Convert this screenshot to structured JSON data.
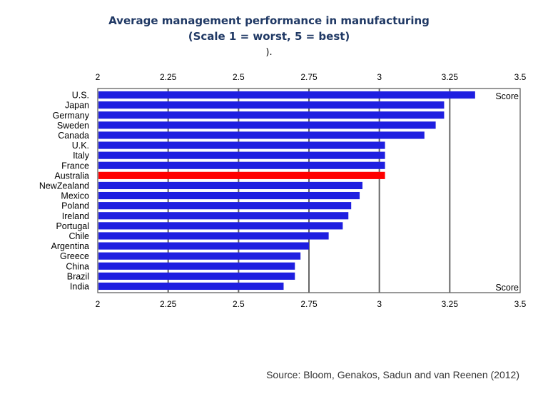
{
  "header": {
    "title": "Average management performance in manufacturing",
    "subtitle": "(Scale 1 = worst, 5 = best)",
    "note": ")."
  },
  "source": "Source: Bloom, Genakos, Sadun and van Reenen (2012)",
  "colors": {
    "bar": "#1f1fe0",
    "highlight": "#ff0000",
    "title": "#1f3864"
  },
  "chart_data": {
    "type": "bar",
    "orientation": "horizontal",
    "categories": [
      "U.S.",
      "Japan",
      "Germany",
      "Sweden",
      "Canada",
      "U.K.",
      "Italy",
      "France",
      "Australia",
      "NewZealand",
      "Mexico",
      "Poland",
      "Ireland",
      "Portugal",
      "Chile",
      "Argentina",
      "Greece",
      "China",
      "Brazil",
      "India"
    ],
    "values": [
      3.34,
      3.23,
      3.23,
      3.2,
      3.16,
      3.02,
      3.02,
      3.02,
      3.02,
      2.94,
      2.93,
      2.9,
      2.89,
      2.87,
      2.82,
      2.75,
      2.72,
      2.7,
      2.7,
      2.66
    ],
    "highlight": "Australia",
    "xlim": [
      2,
      3.5
    ],
    "xticks": [
      "2",
      "2.25",
      "2.5",
      "2.75",
      "3",
      "3.25",
      "3.5"
    ],
    "legend_label_top": "Score",
    "legend_label_bottom": "Score",
    "grid": true
  }
}
